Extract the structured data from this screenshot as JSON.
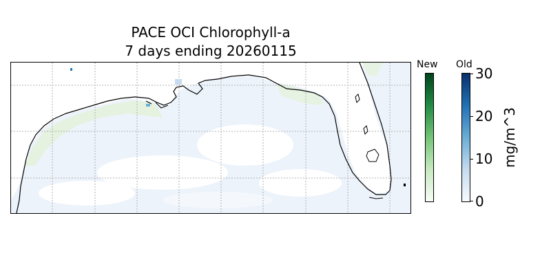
{
  "title_line1": "PACE OCI Chlorophyll-a",
  "title_line2": "7 days ending 20260115",
  "colorbar_new": {
    "label": "New",
    "colormap": "greens",
    "colors": [
      "#f7fcf5",
      "#c7e9c0",
      "#74c476",
      "#238b45",
      "#00441b"
    ]
  },
  "colorbar_old": {
    "label": "Old",
    "colormap": "blues",
    "colors": [
      "#f7fbff",
      "#c6dbef",
      "#6baed6",
      "#2171b5",
      "#08306b"
    ]
  },
  "scale": {
    "min": 0,
    "max": 30,
    "ticks": [
      "0",
      "10",
      "20",
      "30"
    ],
    "units": "mg/m^3"
  },
  "map": {
    "region": "Gulf of Mexico (northern)",
    "coastline_color": "#000000",
    "graticule": "dotted gray"
  }
}
